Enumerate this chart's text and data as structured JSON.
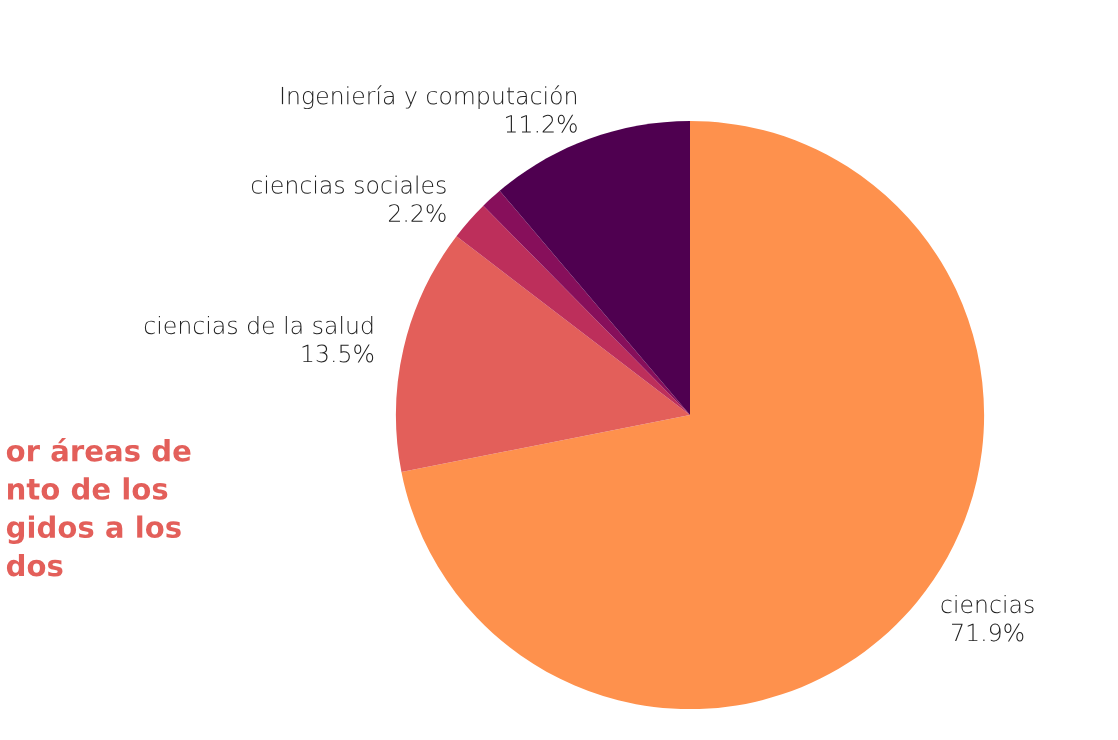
{
  "chart_data": {
    "type": "pie",
    "categories": [
      "ciencias",
      "ciencias de la salud",
      "ciencias sociales",
      null,
      "Ingeniería y computación"
    ],
    "values": [
      71.9,
      13.5,
      2.2,
      1.2,
      11.2
    ],
    "value_labels": [
      "71.9%",
      "13.5%",
      "2.2%",
      null,
      "11.2%"
    ],
    "colors": [
      "#fe914d",
      "#e35f5a",
      "#bd2f5b",
      "#870f5b",
      "#4f0050"
    ],
    "annotations": [
      "or áreas de\nnto de los\ngidos a los\ndos"
    ],
    "legend": false
  }
}
